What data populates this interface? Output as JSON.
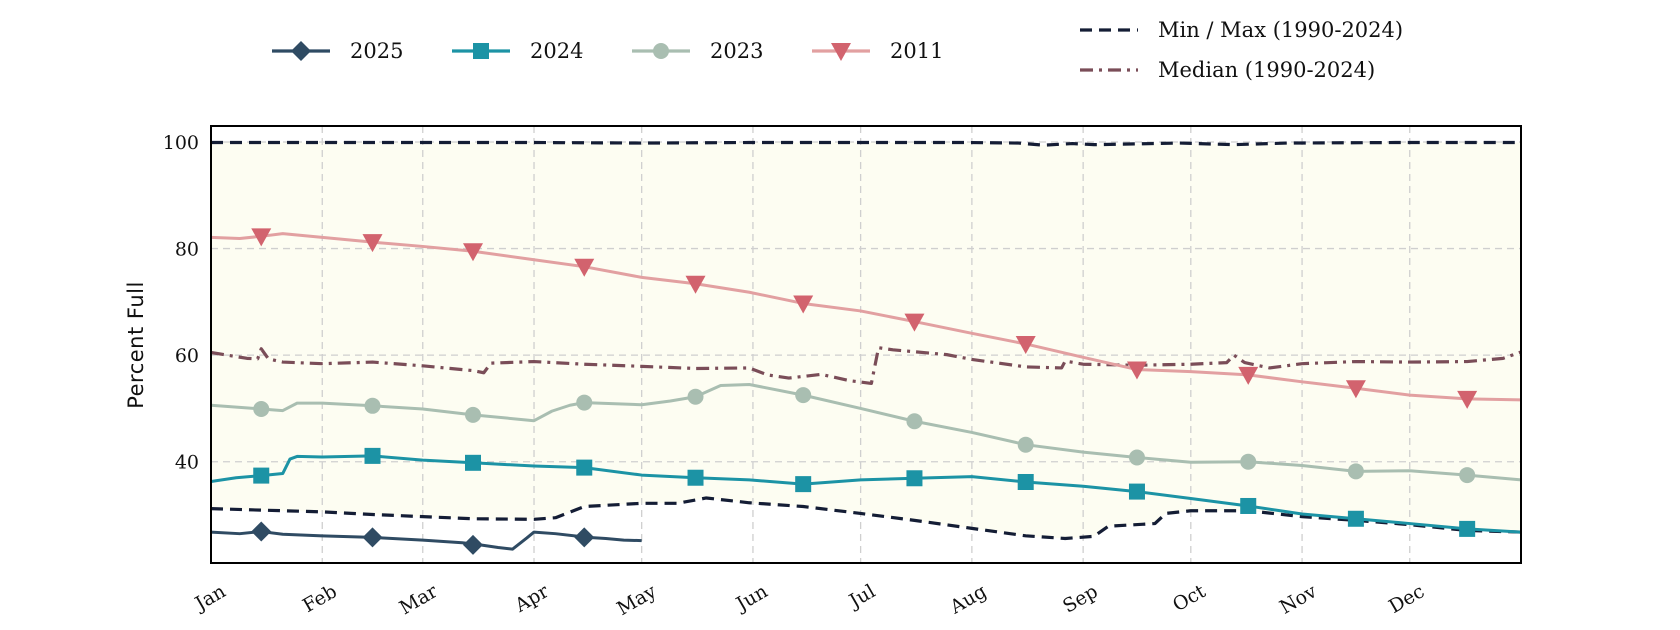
{
  "chart_data": {
    "type": "line",
    "title": "",
    "xlabel": "",
    "ylabel": "Percent Full",
    "xlim": [
      0,
      365
    ],
    "ylim": [
      21,
      103
    ],
    "grid": true,
    "legend_placement": "top",
    "x_ticks": [
      {
        "label": "Jan",
        "day": 0
      },
      {
        "label": "Feb",
        "day": 31
      },
      {
        "label": "Mar",
        "day": 59
      },
      {
        "label": "Apr",
        "day": 90
      },
      {
        "label": "May",
        "day": 120
      },
      {
        "label": "Jun",
        "day": 151
      },
      {
        "label": "Jul",
        "day": 181
      },
      {
        "label": "Aug",
        "day": 212
      },
      {
        "label": "Sep",
        "day": 243
      },
      {
        "label": "Oct",
        "day": 273
      },
      {
        "label": "Nov",
        "day": 304
      },
      {
        "label": "Dec",
        "day": 334
      }
    ],
    "y_ticks": [
      40,
      60,
      80,
      100
    ],
    "shaded_band": {
      "from": "min",
      "to": "max",
      "color": "#fdfdf2"
    },
    "series": [
      {
        "name": "2025",
        "color": "#2f4b63",
        "marker": "diamond",
        "style": "solid",
        "x": [
          0,
          8,
          14,
          20,
          31,
          45,
          59,
          70,
          75,
          80,
          84,
          88,
          90,
          96,
          105,
          110,
          115,
          120
        ],
        "y": [
          26.8,
          26.5,
          26.9,
          26.4,
          26.1,
          25.8,
          25.3,
          24.8,
          24.4,
          23.9,
          23.6,
          25.7,
          26.8,
          26.5,
          25.8,
          25.6,
          25.3,
          25.2
        ],
        "markers_x": [
          14,
          45,
          73,
          104
        ],
        "markers_y": [
          26.9,
          25.8,
          24.4,
          25.8
        ]
      },
      {
        "name": "2024",
        "color": "#1c93a5",
        "marker": "square",
        "style": "solid",
        "x": [
          0,
          7,
          14,
          20,
          22,
          24,
          31,
          45,
          59,
          73,
          90,
          104,
          120,
          135,
          150,
          165,
          181,
          196,
          212,
          227,
          243,
          258,
          273,
          289,
          304,
          319,
          334,
          350,
          365
        ],
        "y": [
          36.3,
          37.0,
          37.4,
          37.8,
          40.5,
          41.0,
          40.9,
          41.1,
          40.3,
          39.8,
          39.2,
          38.9,
          37.5,
          37.0,
          36.6,
          35.8,
          36.6,
          36.9,
          37.2,
          36.2,
          35.4,
          34.4,
          33.1,
          31.7,
          30.2,
          29.3,
          28.4,
          27.4,
          26.8
        ],
        "markers_x": [
          14,
          45,
          73,
          104,
          135,
          165,
          196,
          227,
          258,
          289,
          319,
          350
        ],
        "markers_y": [
          37.4,
          41.1,
          39.8,
          38.9,
          37.0,
          35.8,
          36.9,
          36.2,
          34.4,
          31.7,
          29.3,
          27.4
        ]
      },
      {
        "name": "2023",
        "color": "#a9beb1",
        "marker": "circle",
        "style": "solid",
        "x": [
          0,
          8,
          14,
          20,
          24,
          31,
          45,
          59,
          73,
          90,
          95,
          100,
          104,
          120,
          128,
          135,
          142,
          150,
          165,
          181,
          196,
          212,
          227,
          243,
          258,
          273,
          289,
          304,
          319,
          334,
          350,
          365
        ],
        "y": [
          50.6,
          50.2,
          49.9,
          49.6,
          51.0,
          51.0,
          50.5,
          49.9,
          48.8,
          47.7,
          49.5,
          50.6,
          51.1,
          50.7,
          51.4,
          52.2,
          54.3,
          54.5,
          52.5,
          50.0,
          47.6,
          45.5,
          43.2,
          41.8,
          40.8,
          39.9,
          40.0,
          39.3,
          38.2,
          38.3,
          37.5,
          36.6
        ],
        "markers_x": [
          14,
          45,
          73,
          104,
          135,
          165,
          196,
          227,
          258,
          289,
          319,
          350
        ],
        "markers_y": [
          49.9,
          50.5,
          48.8,
          51.1,
          52.2,
          52.5,
          47.6,
          43.2,
          40.8,
          40.0,
          38.2,
          37.5
        ]
      },
      {
        "name": "2011",
        "color": "#e2a0a1",
        "marker_color": "#d2636e",
        "marker": "triangle-down",
        "style": "solid",
        "x": [
          0,
          8,
          14,
          20,
          31,
          45,
          59,
          73,
          90,
          104,
          120,
          135,
          150,
          165,
          181,
          196,
          212,
          227,
          243,
          258,
          273,
          289,
          304,
          319,
          334,
          350,
          365
        ],
        "y": [
          82.1,
          81.9,
          82.3,
          82.8,
          82.1,
          81.2,
          80.4,
          79.5,
          77.9,
          76.6,
          74.6,
          73.4,
          71.8,
          69.7,
          68.3,
          66.3,
          64.1,
          62.1,
          59.6,
          57.3,
          56.9,
          56.3,
          55.0,
          53.8,
          52.5,
          51.8,
          51.6
        ],
        "markers_x": [
          14,
          45,
          73,
          104,
          135,
          165,
          196,
          227,
          258,
          289,
          319,
          350
        ],
        "markers_y": [
          82.3,
          81.2,
          79.5,
          76.6,
          73.4,
          69.7,
          66.3,
          62.1,
          57.3,
          56.3,
          53.8,
          51.8
        ]
      },
      {
        "name": "Min / Max (1990-2024)",
        "color": "#141d35",
        "marker": "none",
        "style": "dashed",
        "role": "max",
        "x": [
          0,
          60,
          90,
          120,
          150,
          180,
          210,
          225,
          232,
          240,
          246,
          270,
          285,
          300,
          330,
          365
        ],
        "y": [
          99.9,
          99.9,
          99.9,
          99.8,
          99.9,
          99.9,
          99.9,
          99.8,
          99.4,
          99.7,
          99.5,
          99.8,
          99.5,
          99.8,
          99.9,
          99.9
        ]
      },
      {
        "name": "Min / Max (1990-2024)",
        "color": "#141d35",
        "marker": "none",
        "style": "dashed",
        "role": "min",
        "x": [
          0,
          15,
          31,
          45,
          59,
          73,
          90,
          96,
          104,
          120,
          130,
          138,
          150,
          165,
          181,
          196,
          212,
          227,
          238,
          246,
          250,
          263,
          266,
          273,
          289,
          304,
          319,
          334,
          350,
          365
        ],
        "y": [
          31.2,
          30.9,
          30.6,
          30.1,
          29.7,
          29.3,
          29.2,
          29.5,
          31.6,
          32.2,
          32.2,
          33.2,
          32.3,
          31.6,
          30.3,
          29.0,
          27.5,
          26.1,
          25.6,
          26.0,
          27.9,
          28.4,
          30.3,
          30.8,
          30.8,
          29.7,
          29.0,
          28.2,
          27.1,
          26.8
        ]
      },
      {
        "name": "Median (1990-2024)",
        "color": "#7a4d58",
        "marker": "none",
        "style": "dashdot",
        "x": [
          0,
          10,
          13,
          14,
          16,
          20,
          31,
          45,
          59,
          73,
          76,
          78,
          90,
          104,
          120,
          135,
          150,
          155,
          161,
          170,
          178,
          184,
          186,
          190,
          205,
          212,
          227,
          237,
          238,
          243,
          258,
          273,
          283,
          285,
          288,
          295,
          304,
          319,
          334,
          350,
          360,
          365
        ],
        "y": [
          60.5,
          59.4,
          59.3,
          61.2,
          59.3,
          58.7,
          58.4,
          58.7,
          58.0,
          57.1,
          56.7,
          58.5,
          58.8,
          58.3,
          57.9,
          57.5,
          57.6,
          56.3,
          55.7,
          56.4,
          55.2,
          54.7,
          61.4,
          61.0,
          60.1,
          59.2,
          57.8,
          57.6,
          58.9,
          58.3,
          58.1,
          58.3,
          58.6,
          60.0,
          58.6,
          57.6,
          58.4,
          58.8,
          58.7,
          58.8,
          59.4,
          60.6
        ]
      }
    ],
    "legend": [
      {
        "label": "2025",
        "color": "#2f4b63",
        "marker": "diamond",
        "style": "solid"
      },
      {
        "label": "2024",
        "color": "#1c93a5",
        "marker": "square",
        "style": "solid"
      },
      {
        "label": "2023",
        "color": "#a9beb1",
        "marker": "circle",
        "style": "solid"
      },
      {
        "label": "2011",
        "color": "#e2a0a1",
        "marker_color": "#d2636e",
        "marker": "triangle-down",
        "style": "solid"
      },
      {
        "label": "Min / Max (1990-2024)",
        "color": "#141d35",
        "marker": "none",
        "style": "dashed"
      },
      {
        "label": "Median (1990-2024)",
        "color": "#7a4d58",
        "marker": "none",
        "style": "dashdot"
      }
    ]
  }
}
